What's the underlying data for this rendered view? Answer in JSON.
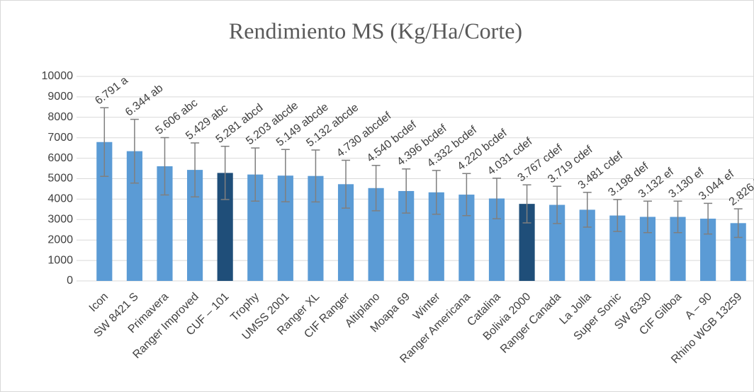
{
  "chart_data": {
    "type": "bar",
    "title": "Rendimiento MS (Kg/Ha/Corte)",
    "categories": [
      "Icon",
      "SW 8421 S",
      "Primavera",
      "Ranger Improved",
      "CUF – 101",
      "Trophy",
      "UMSS 2001",
      "Ranger XL",
      "CIF Ranger",
      "Altiplano",
      "Moapa 69",
      "Winter",
      "Ranger Americana",
      "Catalina",
      "Bolivia 2000",
      "Ranger Canada",
      "La Jolla",
      "Super Sonic",
      "SW 6330",
      "CIF Gilboa",
      "A – 90",
      "Rhino WGB 13259"
    ],
    "values": [
      6791,
      6344,
      5606,
      5429,
      5281,
      5203,
      5149,
      5132,
      4730,
      4540,
      4396,
      4332,
      4220,
      4031,
      3767,
      3719,
      3481,
      3198,
      3132,
      3130,
      3044,
      2826
    ],
    "value_labels": [
      "6.791 a",
      "6.344 ab",
      "5.606 abc",
      "5.429 abc",
      "5.281 abcd",
      "5.203 abcde",
      "5.149 abcde",
      "5.132 abcde",
      "4.730 abcdef",
      "4.540 bcdef",
      "4.396 bcdef",
      "4.332 bcdef",
      "4.220 bcdef",
      "4.031 cdef",
      "3.767 cdef",
      "3.719 cdef",
      "3.481 cdef",
      "3.198 def",
      "3.132 ef",
      "3.130 ef",
      "3.044 ef",
      "2.826 f"
    ],
    "errors": [
      1680,
      1560,
      1400,
      1320,
      1300,
      1300,
      1280,
      1270,
      1170,
      1110,
      1080,
      1070,
      1030,
      990,
      930,
      910,
      850,
      780,
      770,
      770,
      750,
      700
    ],
    "colors": [
      "#5b9bd5",
      "#5b9bd5",
      "#5b9bd5",
      "#5b9bd5",
      "#1f4e79",
      "#5b9bd5",
      "#5b9bd5",
      "#5b9bd5",
      "#5b9bd5",
      "#5b9bd5",
      "#5b9bd5",
      "#5b9bd5",
      "#5b9bd5",
      "#5b9bd5",
      "#1f4e79",
      "#5b9bd5",
      "#5b9bd5",
      "#5b9bd5",
      "#5b9bd5",
      "#5b9bd5",
      "#5b9bd5",
      "#5b9bd5"
    ],
    "error_color": "#7f7f7f",
    "ylim": [
      0,
      10000
    ],
    "yticks": [
      0,
      1000,
      2000,
      3000,
      4000,
      5000,
      6000,
      7000,
      8000,
      9000,
      10000
    ],
    "grid": true
  }
}
